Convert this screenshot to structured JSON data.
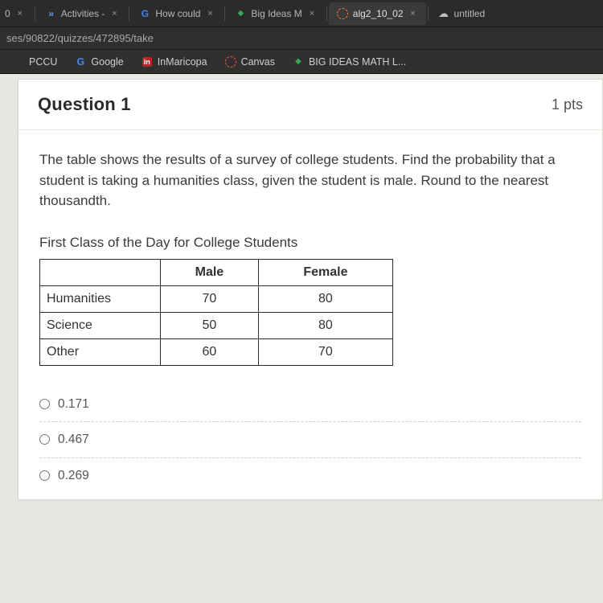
{
  "chrome": {
    "tabs": [
      {
        "partial": "0",
        "close": "×"
      },
      {
        "icon_html": "<span class='arrows'>»</span>",
        "label": "Activities -",
        "close": "×"
      },
      {
        "icon_html": "<span class='g-multi'><span class='b'>G</span></span>",
        "label": "How could",
        "close": "×"
      },
      {
        "icon_html": "<span class='diamond'>◆</span>",
        "label": "Big Ideas M",
        "close": "×"
      },
      {
        "icon_html": "<span class='circle-dashed'></span>",
        "label": "alg2_10_02",
        "close": "×",
        "active": true
      },
      {
        "icon_html": "<span class='cloud'>☁</span>",
        "label": "untitled"
      }
    ],
    "address": "ses/90822/quizzes/472895/take",
    "bookmarks": [
      {
        "icon_html": "",
        "label": "PCCU"
      },
      {
        "icon_html": "<span class='g-multi'><span class='b'>G</span></span>",
        "label": "Google"
      },
      {
        "icon_html": "<span class='inm'>in</span>",
        "label": "InMaricopa"
      },
      {
        "icon_html": "<span class='circle-dashed' style='border-color:#ff5a3c'></span>",
        "label": "Canvas"
      },
      {
        "icon_html": "<span class='diamond'>◆</span>",
        "label": "BIG IDEAS MATH L..."
      }
    ]
  },
  "quiz": {
    "title": "Question 1",
    "points": "1 pts",
    "prompt": "The table shows the results of a survey of college students. Find the probability that a student is taking a humanities class, given the student is male. Round to the nearest thousandth.",
    "table_title": "First Class of the Day for College Students",
    "table": {
      "columns": [
        "",
        "Male",
        "Female"
      ],
      "rows": [
        [
          "Humanities",
          "70",
          "80"
        ],
        [
          "Science",
          "50",
          "80"
        ],
        [
          "Other",
          "60",
          "70"
        ]
      ]
    },
    "answers": [
      "0.171",
      "0.467",
      "0.269"
    ]
  }
}
